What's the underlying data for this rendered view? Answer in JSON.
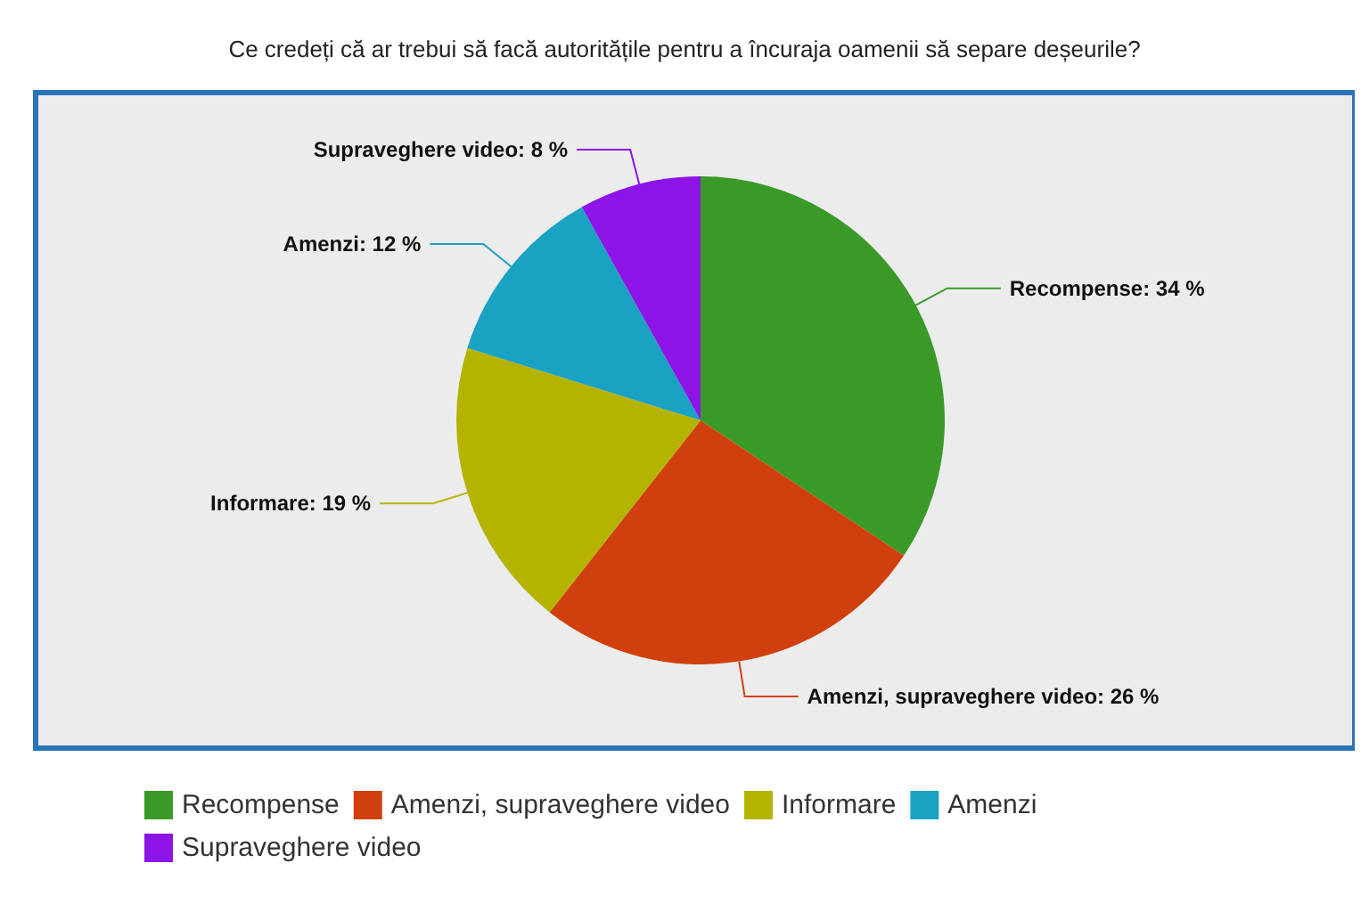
{
  "chart_data": {
    "type": "pie",
    "title": "Ce credeți că ar trebui să facă autoritățile pentru a încuraja oamenii să separe deșeurile?",
    "categories": [
      "Recompense",
      "Amenzi, supraveghere video",
      "Informare",
      "Amenzi",
      "Supraveghere video"
    ],
    "values": [
      34,
      26,
      19,
      12,
      8
    ],
    "colors": [
      "#3a9a28",
      "#d0400e",
      "#b4b400",
      "#1aa2c2",
      "#8c14e6"
    ],
    "value_labels": [
      "Recompense: 34 %",
      "Amenzi, supraveghere video: 26 %",
      "Informare: 19 %",
      "Amenzi: 12 %",
      "Supraveghere video: 8 %"
    ],
    "legend": "bottom"
  }
}
